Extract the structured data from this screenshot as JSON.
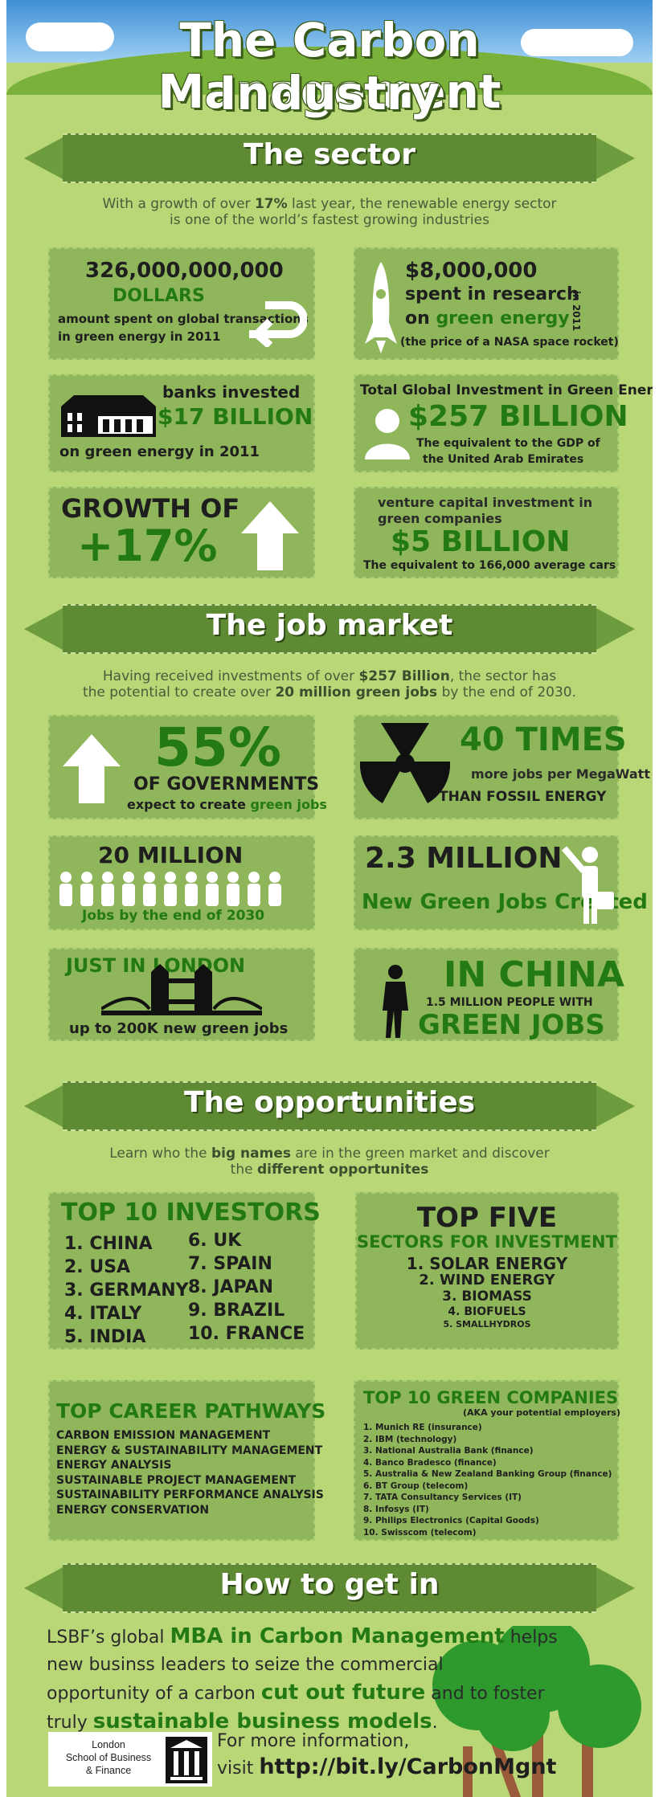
{
  "header": {
    "title_line1": "The Carbon Management",
    "title_line2": "Industry"
  },
  "sections": {
    "sector": "The sector",
    "jobs": "The job market",
    "opportunities": "The opportunities",
    "getin": "How to get in"
  },
  "sector": {
    "intro_a": "With a growth of over ",
    "intro_b": "17%",
    "intro_c": " last year, the renewable energy sector",
    "intro_d": "is one of the world’s fastest growing industries",
    "b1_big": "326,000,000,000",
    "b1_unit": "DOLLARS",
    "b1_l1": "amount spent on global transactions",
    "b1_l2": "in green energy in 2011",
    "b2_big": "$8,000,000",
    "b2_l1": "spent in research",
    "b2_l2a": "on ",
    "b2_l2b": "green energy",
    "b2_year": "in 2011",
    "b2_l3": "(the price of a NASA space rocket)",
    "b3_top": "banks invested",
    "b3_big": "$17 BILLION",
    "b3_bot": "on green energy in 2011",
    "b4_top": "Total Global Investment in Green Energy",
    "b4_big": "$257 BILLION",
    "b4_l1": "The equivalent to the GDP of",
    "b4_l2": "the United Arab Emirates",
    "b5_l1": "GROWTH OF",
    "b5_l2": "+17%",
    "b6_l1": "venture capital investment in",
    "b6_l2": "green companies",
    "b6_big": "$5 BILLION",
    "b6_l3": "The equivalent to 166,000 average cars"
  },
  "jobs": {
    "intro_a": "Having received investments of over ",
    "intro_b": "$257 Billion",
    "intro_c": ", the sector has",
    "intro_d": "the potential to create over ",
    "intro_e": "20 million green jobs",
    "intro_f": " by the end of 2030.",
    "b1_big": "55%",
    "b1_l1": "OF GOVERNMENTS",
    "b1_l2a": "expect to create ",
    "b1_l2b": "green jobs",
    "b2_big": "40 TIMES",
    "b2_l1": "more jobs per MegaWatt",
    "b2_l2": "THAN FOSSIL ENERGY",
    "b3_big": "20 MILLION",
    "b3_l1": "Jobs by the end of 2030",
    "b4_big": "2.3 MILLION",
    "b4_l1": "New Green Jobs Created",
    "b5_l1": "JUST IN LONDON",
    "b5_l2": "up to 200K new green jobs",
    "b6_big": "IN CHINA",
    "b6_l1": "1.5 MILLION PEOPLE WITH",
    "b6_l2": "GREEN JOBS"
  },
  "opps": {
    "intro_a": "Learn who the ",
    "intro_b": "big names",
    "intro_c": " are in the green market and discover",
    "intro_d": "the ",
    "intro_e": "different opportunites",
    "inv_title": "TOP 10 INVESTORS",
    "investors_left": [
      "1. CHINA",
      "2. USA",
      "3. GERMANY",
      "4. ITALY",
      "5. INDIA"
    ],
    "investors_right": [
      "6. UK",
      "7. SPAIN",
      "8. JAPAN",
      "9. BRAZIL",
      "10. FRANCE"
    ],
    "sec_title1": "TOP FIVE",
    "sec_title2": "SECTORS FOR INVESTMENT",
    "sectors": [
      "1. SOLAR ENERGY",
      "2. WIND ENERGY",
      "3. BIOMASS",
      "4. BIOFUELS",
      "5. SMALLHYDROS"
    ],
    "car_title": "TOP CAREER PATHWAYS",
    "careers": [
      "CARBON EMISSION MANAGEMENT",
      "ENERGY & SUSTAINABILITY MANAGEMENT",
      "ENERGY ANALYSIS",
      "SUSTAINABLE PROJECT MANAGEMENT",
      "SUSTAINABILITY PERFORMANCE ANALYSIS",
      "ENERGY CONSERVATION"
    ],
    "comp_title": "TOP 10 GREEN COMPANIES",
    "comp_sub": "(AKA your potential employers)",
    "companies": [
      "1. Munich RE (insurance)",
      "2. IBM (technology)",
      "3. National Australia Bank (finance)",
      "4. Banco Bradesco (finance)",
      "5. Australia & New Zealand Banking Group (finance)",
      "6. BT Group (telecom)",
      "7. TATA Consultancy Services (IT)",
      "8. Infosys (IT)",
      "9. Philips Electronics (Capital Goods)",
      "10. Swisscom (telecom)"
    ]
  },
  "getin": {
    "l1a": "LSBF’s global ",
    "l1b": "MBA in Carbon Management",
    "l1c": " helps",
    "l2": "new businss leaders to seize the commercial",
    "l3a": "opportunity of a carbon ",
    "l3b": "cut out future",
    "l3c": " and to foster",
    "l4a": "truly ",
    "l4b": "sustainable business models",
    "l4c": ".",
    "logo_l1": "London",
    "logo_l2": "School of Business",
    "logo_l3": "& Finance",
    "more1": "For more information,",
    "more2a": "visit ",
    "more2b": "http://bit.ly/CarbonMgnt"
  },
  "colors": {
    "bg": "#b9d777",
    "box": "#8fb65a",
    "banner": "#5e8a34",
    "green_text": "#237a14"
  }
}
